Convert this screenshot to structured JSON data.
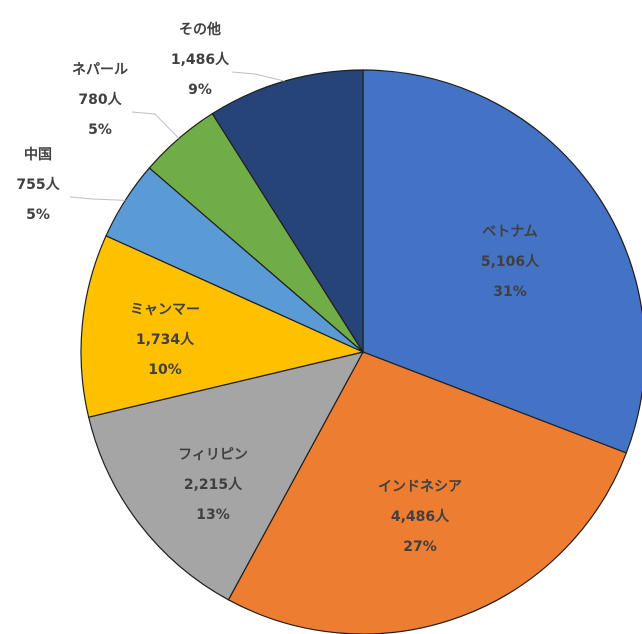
{
  "chart_data": {
    "type": "pie",
    "categories": [
      "ベトナム",
      "インドネシア",
      "フィリピン",
      "ミャンマー",
      "中国",
      "ネパール",
      "その他"
    ],
    "values": [
      5106,
      4486,
      2215,
      1734,
      755,
      780,
      1486
    ],
    "value_labels": [
      "5,106人",
      "4,486人",
      "2,215人",
      "1,734人",
      "755人",
      "780人",
      "1,486人"
    ],
    "percent_labels": [
      "31%",
      "27%",
      "13%",
      "10%",
      "5%",
      "5%",
      "9%"
    ],
    "colors": [
      "#4472c4",
      "#ed7d31",
      "#a5a5a5",
      "#ffc000",
      "#5b9bd5",
      "#70ad47",
      "#264478"
    ]
  }
}
